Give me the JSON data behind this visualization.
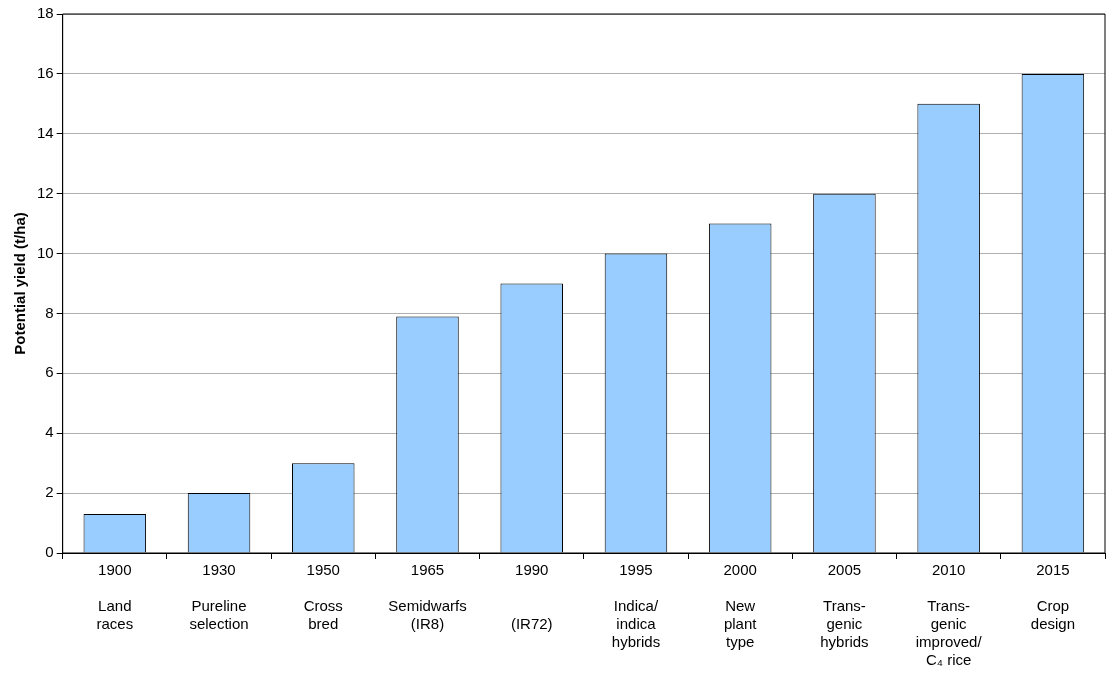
{
  "chart_data": {
    "type": "bar",
    "ylabel": "Potential yield (t/ha)",
    "categories": [
      "1900\n\nLand\nraces",
      "1930\n\nPureline\nselection",
      "1950\n\nCross\nbred",
      "1965\n\nSemidwarfs\n(IR8)",
      "1990\n\n\n(IR72)",
      "1995\n\nIndica/\nindica\nhybrids",
      "2000\n\nNew\nplant\ntype",
      "2005\n\nTrans-\ngenic\nhybrids",
      "2010\n\nTrans-\ngenic\nimproved/\nC₄ rice",
      "2015\n\nCrop\ndesign"
    ],
    "values": [
      1.3,
      2,
      3,
      7.9,
      9,
      10,
      11,
      12,
      15,
      16
    ],
    "color": "#99ccff",
    "ylim": [
      0,
      18
    ],
    "yticks": [
      0,
      2,
      4,
      6,
      8,
      10,
      12,
      14,
      16,
      18
    ],
    "grid": "y",
    "legend": false
  }
}
